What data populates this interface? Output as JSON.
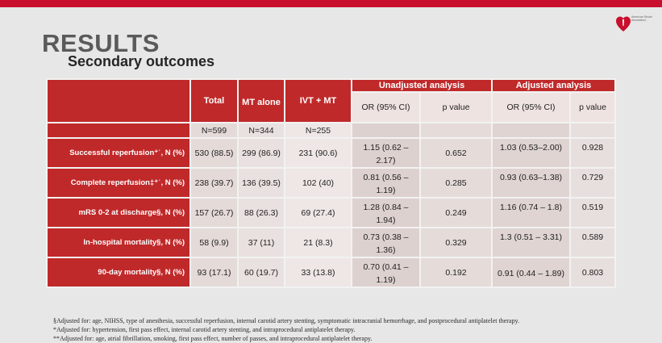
{
  "logo": {
    "org_text": "American Stroke Association."
  },
  "title": "RESULTS",
  "subtitle": "Secondary outcomes",
  "table": {
    "col_headers": {
      "total": "Total",
      "mt_alone": "MT alone",
      "ivt_mt": "IVT + MT",
      "unadjusted": "Unadjusted analysis",
      "adjusted": "Adjusted analysis",
      "or": "OR (95% CI)",
      "p": "p value",
      "adj_or": "OR (95% CI)",
      "adj_p": "p value"
    },
    "n_row": {
      "total": "N=599",
      "mt": "N=344",
      "ivt": "N=255"
    },
    "rows": [
      {
        "label": "Successful reperfusion⁺ˈ, N (%)",
        "total": "530 (88.5)",
        "mt": "299 (86.9)",
        "ivt": "231 (90.6)",
        "or": "1.15 (0.62 – 2.17)",
        "p": "0.652",
        "adj_or": "1.03 (0.53–2.00)",
        "adj_p": "0.928"
      },
      {
        "label": "Complete reperfusion‡⁺ˈ, N (%)",
        "total": "238 (39.7)",
        "mt": "136 (39.5)",
        "ivt": "102 (40)",
        "or": "0.81 (0.56 – 1.19)",
        "p": "0.285",
        "adj_or": "0.93 (0.63–1.38)",
        "adj_p": "0.729"
      },
      {
        "label": "mRS 0-2 at discharge§, N (%)",
        "total": "157 (26.7)",
        "mt": "88 (26.3)",
        "ivt": "69 (27.4)",
        "or": "1.28 (0.84 – 1.94)",
        "p": "0.249",
        "adj_or": "1.16 (0.74 – 1.8)",
        "adj_p": "0.519"
      },
      {
        "label": "In-hospital mortality§, N (%)",
        "total": "58 (9.9)",
        "mt": "37 (11)",
        "ivt": "21 (8.3)",
        "or": "0.73 (0.38 – 1.36)",
        "p": "0.329",
        "adj_or": "1.3 (0.51 – 3.31)",
        "adj_p": "0.589"
      },
      {
        "label": "90-day mortality§, N (%)",
        "total": "93 (17.1)",
        "mt": "60 (19.7)",
        "ivt": "33 (13.8)",
        "or": "0.70 (0.41 – 1.19)",
        "p": "0.192",
        "adj_or": "0.91 (0.44 – 1.89)",
        "adj_p": "0.803"
      }
    ]
  },
  "footnotes": [
    "§Adjusted for: age, NIHSS, type of anesthesia, successful reperfusion, internal carotid artery stenting, symptomatic intracranial hemorrhage, and postprocedural antiplatelet therapy.",
    "*Adjusted for: hypertension, first pass effect, internal carotid artery stenting, and intraprocedural antiplatelet therapy.",
    "**Adjusted for: age, atrial fibrillation, smoking, first pass effect, number of passes, and intraprocedural antiplatelet therapy."
  ],
  "colors": {
    "accent_red": "#c0292a",
    "background": "#e7e7e7"
  }
}
